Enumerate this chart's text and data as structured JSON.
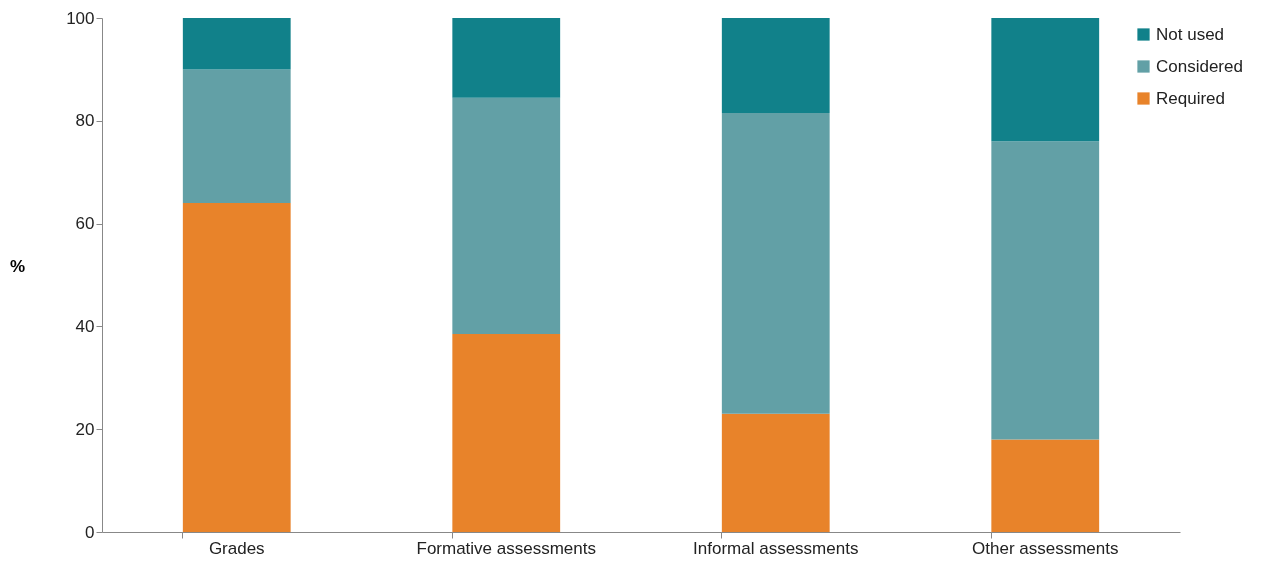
{
  "chart_data": {
    "type": "bar",
    "stacked": true,
    "ylabel": "%",
    "categories": [
      "Grades",
      "Formative assessments",
      "Informal assessments",
      "Other assessments"
    ],
    "series": [
      {
        "name": "Required",
        "color": "#e8832a",
        "values": [
          64,
          38.5,
          23,
          18
        ]
      },
      {
        "name": "Considered",
        "color": "#62a0a6",
        "values": [
          26,
          46,
          58.5,
          58
        ]
      },
      {
        "name": "Not used",
        "color": "#11818a",
        "values": [
          10,
          15.5,
          18.5,
          24
        ]
      }
    ],
    "ylim": [
      0,
      100
    ],
    "yticks": [
      0,
      20,
      40,
      60,
      80,
      100
    ],
    "grid": false,
    "legend": "top right"
  }
}
